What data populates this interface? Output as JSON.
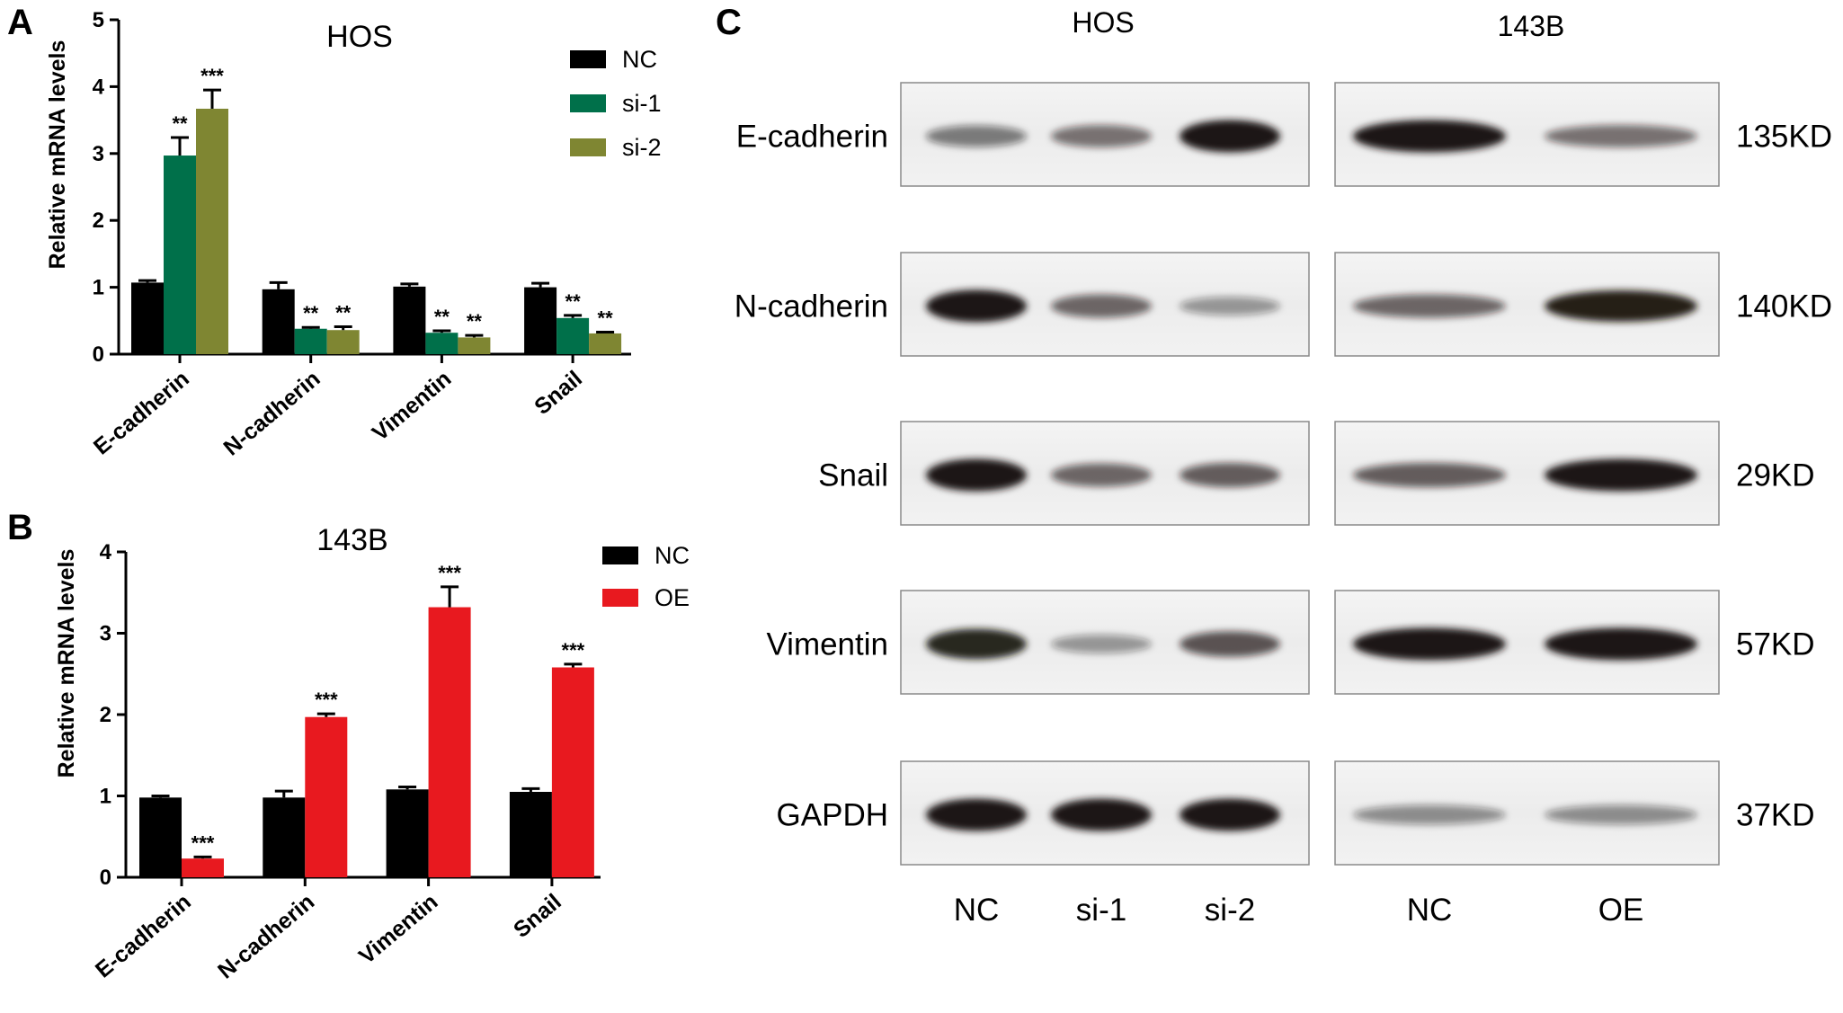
{
  "panels": {
    "A": "A",
    "B": "B",
    "C": "C"
  },
  "colors": {
    "nc": "#000000",
    "si1": "#00704A",
    "si2": "#7F8632",
    "oe": "#E8191F",
    "band": "#1a1412",
    "blot_border": "#8a8a8a"
  },
  "chart_data": [
    {
      "type": "bar",
      "panel": "A",
      "title": "HOS",
      "ylabel": "Relative  mRNA levels",
      "xlabel": "",
      "ylim": [
        0,
        5
      ],
      "yticks": [
        0,
        1,
        2,
        3,
        4,
        5
      ],
      "categories": [
        "E-cadherin",
        "N-cadherin",
        "Vimentin",
        "Snail"
      ],
      "legend_position": "top-right",
      "series": [
        {
          "name": "NC",
          "color": "#000000",
          "values": [
            1.07,
            0.97,
            1.01,
            1.0
          ],
          "errors": [
            0.03,
            0.1,
            0.04,
            0.06
          ],
          "sig": [
            "",
            "",
            "",
            ""
          ]
        },
        {
          "name": "si-1",
          "color": "#00704A",
          "values": [
            2.97,
            0.38,
            0.32,
            0.54
          ],
          "errors": [
            0.27,
            0.02,
            0.03,
            0.04
          ],
          "sig": [
            "**",
            "**",
            "**",
            "**"
          ]
        },
        {
          "name": "si-2",
          "color": "#7F8632",
          "values": [
            3.67,
            0.36,
            0.25,
            0.31
          ],
          "errors": [
            0.28,
            0.05,
            0.03,
            0.02
          ],
          "sig": [
            "***",
            "**",
            "**",
            "**"
          ]
        }
      ]
    },
    {
      "type": "bar",
      "panel": "B",
      "title": "143B",
      "ylabel": "Relative  mRNA levels",
      "xlabel": "",
      "ylim": [
        0,
        4
      ],
      "yticks": [
        0,
        1,
        2,
        3,
        4
      ],
      "categories": [
        "E-cadherin",
        "N-cadherin",
        "Vimentin",
        "Snail"
      ],
      "legend_position": "top-right",
      "series": [
        {
          "name": "NC",
          "color": "#000000",
          "values": [
            0.98,
            0.98,
            1.08,
            1.05
          ],
          "errors": [
            0.02,
            0.08,
            0.03,
            0.04
          ],
          "sig": [
            "",
            "",
            "",
            ""
          ]
        },
        {
          "name": "OE",
          "color": "#E8191F",
          "values": [
            0.23,
            1.97,
            3.32,
            2.58
          ],
          "errors": [
            0.02,
            0.04,
            0.25,
            0.04
          ],
          "sig": [
            "***",
            "***",
            "***",
            "***"
          ]
        }
      ]
    }
  ],
  "western": {
    "groups": [
      {
        "title": "HOS",
        "lanes": [
          "NC",
          "si-1",
          "si-2"
        ]
      },
      {
        "title": "143B",
        "lanes": [
          "NC",
          "OE"
        ]
      }
    ],
    "rows": [
      {
        "protein": "E-cadherin",
        "size": "135KD",
        "hos": [
          0.45,
          0.5,
          1.0
        ],
        "b143": [
          1.0,
          0.5
        ]
      },
      {
        "protein": "N-cadherin",
        "size": "140KD",
        "hos": [
          1.0,
          0.55,
          0.3
        ],
        "b143": [
          0.55,
          0.95
        ]
      },
      {
        "protein": "Snail",
        "size": "29KD",
        "hos": [
          1.0,
          0.55,
          0.6
        ],
        "b143": [
          0.6,
          1.0
        ]
      },
      {
        "protein": "Vimentin",
        "size": "57KD",
        "hos": [
          0.9,
          0.3,
          0.65
        ],
        "b143": [
          1.0,
          1.0
        ]
      },
      {
        "protein": "GAPDH",
        "size": "37KD",
        "hos": [
          1.0,
          1.0,
          1.0
        ],
        "b143": [
          0.35,
          0.35
        ]
      }
    ]
  }
}
